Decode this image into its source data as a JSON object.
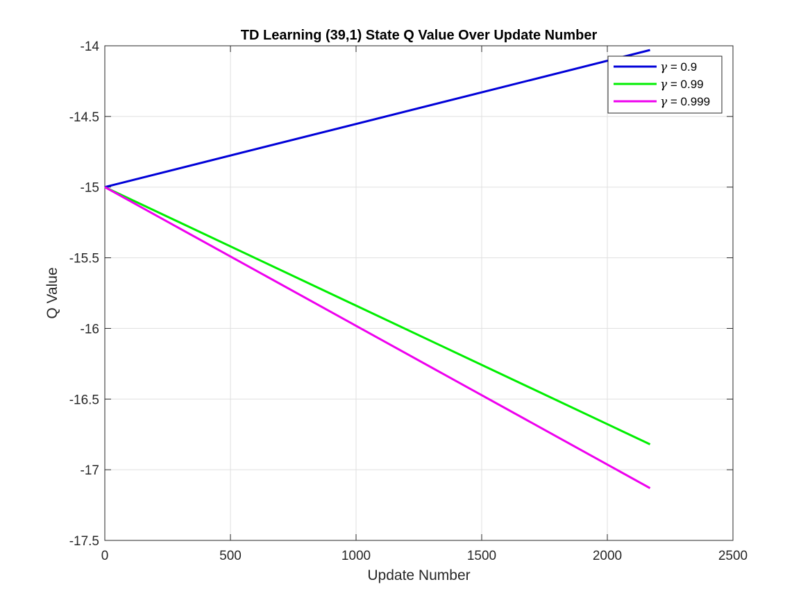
{
  "chart_data": {
    "type": "line",
    "title": "TD Learning (39,1) State Q Value Over Update Number",
    "xlabel": "Update Number",
    "ylabel": "Q Value",
    "xlim": [
      0,
      2500
    ],
    "ylim": [
      -17.5,
      -14
    ],
    "xticks": [
      0,
      500,
      1000,
      1500,
      2000,
      2500
    ],
    "xtick_labels": [
      "0",
      "500",
      "1000",
      "1500",
      "2000",
      "2500"
    ],
    "yticks": [
      -17.5,
      -17,
      -16.5,
      -16,
      -15.5,
      -15,
      -14.5,
      -14
    ],
    "ytick_labels": [
      "-17.5",
      "-17",
      "-16.5",
      "-16",
      "-15.5",
      "-15",
      "-14.5",
      "-14"
    ],
    "grid": true,
    "legend_position": "top-right",
    "series": [
      {
        "name": "γ = 0.9",
        "legend_symbol": "γ",
        "legend_rest": " = 0.9",
        "color": "#0000d8",
        "x": [
          0,
          2170
        ],
        "y": [
          -15.0,
          -14.03
        ]
      },
      {
        "name": "γ = 0.99",
        "legend_symbol": "γ",
        "legend_rest": " = 0.99",
        "color": "#00ee00",
        "x": [
          0,
          2170
        ],
        "y": [
          -15.0,
          -16.82
        ]
      },
      {
        "name": "γ = 0.999",
        "legend_symbol": "γ",
        "legend_rest": " = 0.999",
        "color": "#ee00ee",
        "x": [
          0,
          2170
        ],
        "y": [
          -15.0,
          -17.13
        ]
      }
    ]
  }
}
